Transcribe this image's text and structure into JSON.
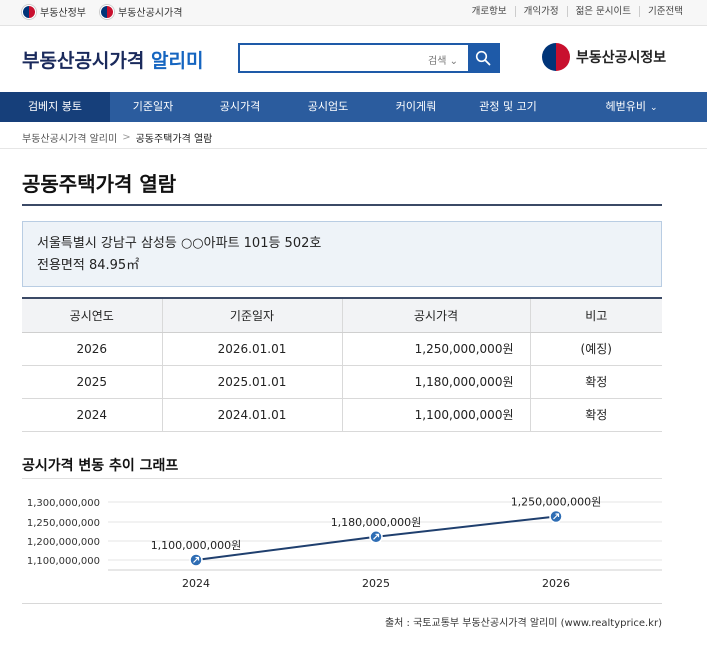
{
  "util": {
    "gov1": "부동산정부",
    "gov2": "부동산공시가격",
    "links": [
      "개로항보",
      "개익가정",
      "젊은 문시이트",
      "기준전택"
    ]
  },
  "header": {
    "brand_main": "부동산공시가격",
    "brand_accent": "알리미",
    "search_select": "검색",
    "ministry_logo": "부동산공시정보"
  },
  "nav": {
    "items": [
      "검베지 봉토",
      "기준일자",
      "공시가격",
      "공시엄도",
      "커이게뤄",
      "관정 및 고기",
      "헤벋유비"
    ]
  },
  "breadcrumb": {
    "items": [
      "부동산공시가격 알리미",
      "공동주택가격 열람"
    ]
  },
  "page": {
    "title": "공동주택가격 열람"
  },
  "info": {
    "address": "서울특별시 강남구 삼성등 ○○아파트 101등 502호",
    "area": "전용면적 84.95㎡"
  },
  "table": {
    "headers": [
      "공시연도",
      "기준일자",
      "공시가격",
      "비고"
    ],
    "rows": [
      [
        "2026",
        "2026.01.01",
        "1,250,000,000원",
        "(예징)"
      ],
      [
        "2025",
        "2025.01.01",
        "1,180,000,000원",
        "확정"
      ],
      [
        "2024",
        "2024.01.01",
        "1,100,000,000원",
        "확정"
      ]
    ]
  },
  "graph": {
    "title": "공시가격 변동 추이 그래프"
  },
  "chart_data": {
    "type": "line",
    "categories": [
      "2024",
      "2025",
      "2026"
    ],
    "values": [
      1100000000,
      1180000000,
      1250000000
    ],
    "data_labels": [
      "1,100,000,000원",
      "1,180,000,000원",
      "1,250,000,000원"
    ],
    "y_ticks": [
      "1,300,000,000",
      "1,250,000,000",
      "1,200,000,000",
      "1,100,000,000"
    ],
    "ylim": [
      1100000000,
      1300000000
    ],
    "line_color": "#1f3f6e",
    "marker_color": "#2e6db4",
    "grid": true
  },
  "footer": {
    "source": "출처 : 국토교통부 부동산공시가격 알리미 (www.realtyprice.kr)"
  },
  "colors": {
    "primary": "#2b5c9e",
    "nav_active": "#163f7a",
    "brand": "#1a2a5c",
    "accent": "#1565c0"
  }
}
